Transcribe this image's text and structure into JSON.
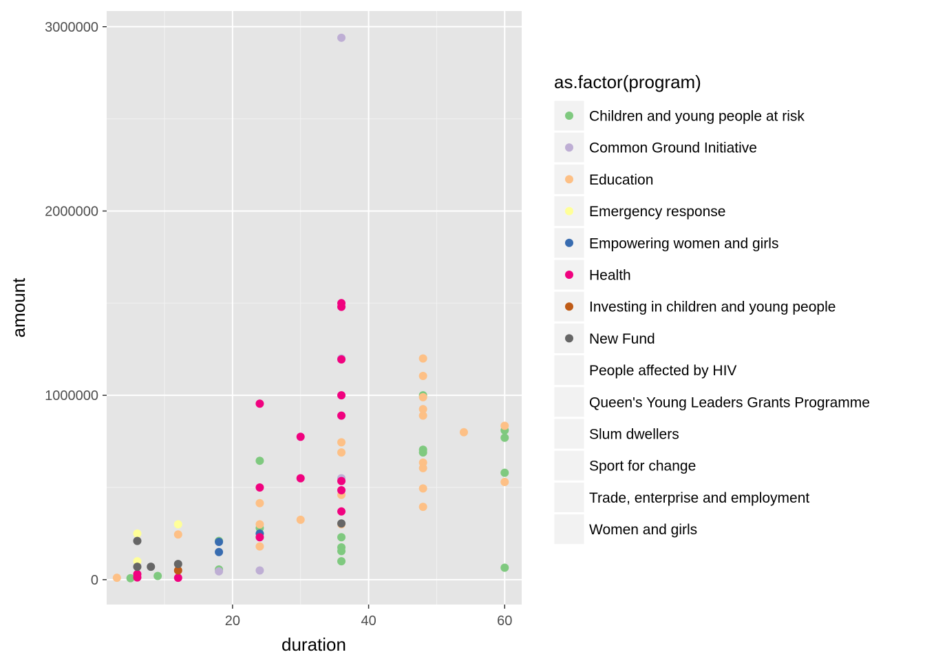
{
  "chart_data": {
    "type": "scatter",
    "xlabel": "duration",
    "ylabel": "amount",
    "xlim": [
      1.5,
      62.5
    ],
    "ylim": [
      -135000,
      3085000
    ],
    "x_ticks": [
      20,
      40,
      60
    ],
    "x_tick_labels": [
      "20",
      "40",
      "60"
    ],
    "y_ticks": [
      0,
      1000000,
      2000000,
      3000000
    ],
    "y_tick_labels": [
      "0",
      "1000000",
      "2000000",
      "3000000"
    ],
    "x_minor_ticks": [
      10,
      30,
      50
    ],
    "y_minor_ticks": [
      500000,
      1500000,
      2500000
    ],
    "grid": true,
    "panel_background": "#e5e5e5",
    "legend": {
      "title": "as.factor(program)",
      "placement": "right"
    },
    "series": [
      {
        "name": "Children and young people at risk",
        "color": "#7fc97f",
        "points": [
          [
            5,
            8000
          ],
          [
            9,
            20000
          ],
          [
            18,
            210000
          ],
          [
            18,
            55000
          ],
          [
            24,
            645000
          ],
          [
            24,
            280000
          ],
          [
            36,
            230000
          ],
          [
            36,
            175000
          ],
          [
            36,
            155000
          ],
          [
            36,
            100000
          ],
          [
            48,
            1000000
          ],
          [
            48,
            705000
          ],
          [
            48,
            690000
          ],
          [
            60,
            810000
          ],
          [
            60,
            770000
          ],
          [
            60,
            580000
          ],
          [
            60,
            65000
          ]
        ]
      },
      {
        "name": "Common Ground Initiative",
        "color": "#beaed4",
        "points": [
          [
            36,
            2940000
          ],
          [
            36,
            1200000
          ],
          [
            36,
            550000
          ],
          [
            24,
            50000
          ],
          [
            18,
            45000
          ]
        ]
      },
      {
        "name": "Education",
        "color": "#fdc086",
        "points": [
          [
            3,
            10000
          ],
          [
            12,
            245000
          ],
          [
            24,
            415000
          ],
          [
            24,
            300000
          ],
          [
            24,
            180000
          ],
          [
            30,
            325000
          ],
          [
            36,
            745000
          ],
          [
            36,
            690000
          ],
          [
            36,
            460000
          ],
          [
            36,
            300000
          ],
          [
            48,
            1200000
          ],
          [
            48,
            1105000
          ],
          [
            48,
            990000
          ],
          [
            48,
            925000
          ],
          [
            48,
            890000
          ],
          [
            48,
            635000
          ],
          [
            48,
            605000
          ],
          [
            48,
            495000
          ],
          [
            48,
            395000
          ],
          [
            54,
            800000
          ],
          [
            60,
            835000
          ],
          [
            60,
            530000
          ]
        ]
      },
      {
        "name": "Emergency response",
        "color": "#ffff99",
        "points": [
          [
            6,
            250000
          ],
          [
            6,
            100000
          ],
          [
            12,
            300000
          ]
        ]
      },
      {
        "name": "Empowering women and girls",
        "color": "#386cb0",
        "points": [
          [
            18,
            205000
          ],
          [
            18,
            150000
          ],
          [
            24,
            250000
          ]
        ]
      },
      {
        "name": "Health",
        "color": "#f0027f",
        "points": [
          [
            6,
            30000
          ],
          [
            6,
            12000
          ],
          [
            12,
            10000
          ],
          [
            24,
            955000
          ],
          [
            24,
            500000
          ],
          [
            24,
            230000
          ],
          [
            30,
            775000
          ],
          [
            30,
            550000
          ],
          [
            36,
            1500000
          ],
          [
            36,
            1480000
          ],
          [
            36,
            1195000
          ],
          [
            36,
            1000000
          ],
          [
            36,
            890000
          ],
          [
            36,
            535000
          ],
          [
            36,
            485000
          ],
          [
            36,
            370000
          ]
        ]
      },
      {
        "name": "Investing in children and young people",
        "color": "#bf5b17",
        "points": [
          [
            12,
            50000
          ]
        ]
      },
      {
        "name": "New Fund",
        "color": "#666666",
        "points": [
          [
            6,
            210000
          ],
          [
            6,
            70000
          ],
          [
            8,
            70000
          ],
          [
            12,
            85000
          ],
          [
            36,
            305000
          ]
        ]
      },
      {
        "name": "People affected by HIV",
        "color": "",
        "points": []
      },
      {
        "name": "Queen's Young Leaders Grants Programme",
        "color": "",
        "points": []
      },
      {
        "name": "Slum dwellers",
        "color": "",
        "points": []
      },
      {
        "name": "Sport for change",
        "color": "",
        "points": []
      },
      {
        "name": "Trade, enterprise and employment",
        "color": "",
        "points": []
      },
      {
        "name": "Women and girls",
        "color": "",
        "points": []
      }
    ]
  }
}
